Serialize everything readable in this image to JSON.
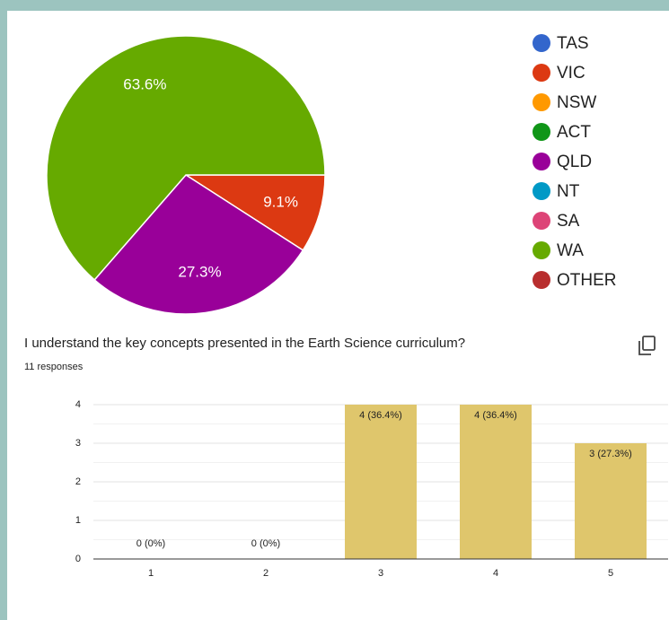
{
  "chart_data": [
    {
      "type": "pie",
      "categories": [
        "TAS",
        "VIC",
        "NSW",
        "ACT",
        "QLD",
        "NT",
        "SA",
        "WA",
        "OTHER"
      ],
      "values": [
        0,
        9.1,
        0,
        0,
        27.3,
        0,
        0,
        63.6,
        0
      ],
      "value_labels": [
        null,
        "9.1%",
        null,
        null,
        "27.3%",
        null,
        null,
        "63.6%",
        null
      ],
      "colors": [
        "#3366cc",
        "#dc3912",
        "#ff9900",
        "#109618",
        "#990099",
        "#0099c6",
        "#dd4477",
        "#66aa00",
        "#b82e2e"
      ],
      "legend": "right"
    },
    {
      "type": "bar",
      "title": "I understand the key concepts presented in the Earth Science curriculum?",
      "subtitle": "11 responses",
      "categories": [
        "1",
        "2",
        "3",
        "4",
        "5"
      ],
      "values": [
        0,
        0,
        4,
        4,
        3
      ],
      "value_labels": [
        "0 (0%)",
        "0 (0%)",
        "4 (36.4%)",
        "4 (36.4%)",
        "3 (27.3%)"
      ],
      "color": "#dfc66c",
      "ylim": [
        0,
        4
      ],
      "yticks": [
        0,
        1,
        2,
        3,
        4
      ],
      "grid": true
    }
  ]
}
